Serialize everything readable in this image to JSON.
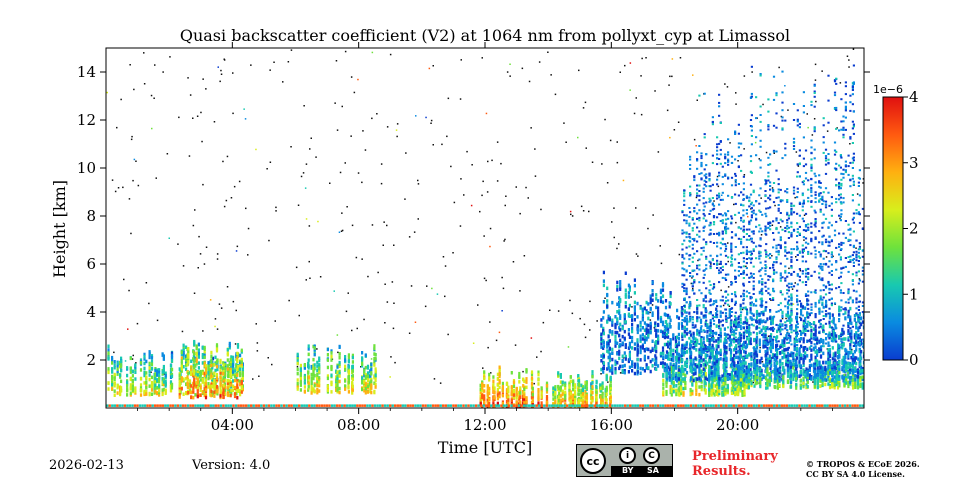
{
  "chart_data": {
    "type": "heatmap",
    "title": "Quasi backscatter coefficient (V2) at 1064 nm from pollyxt_cyp at Limassol",
    "xlabel": "Time [UTC]",
    "ylabel": "Height [km]",
    "xlim_hours": [
      0,
      24
    ],
    "ylim_km": [
      0,
      15
    ],
    "x_ticks": [
      {
        "value": 4,
        "label": "04:00"
      },
      {
        "value": 8,
        "label": "08:00"
      },
      {
        "value": 12,
        "label": "12:00"
      },
      {
        "value": 16,
        "label": "16:00"
      },
      {
        "value": 20,
        "label": "20:00"
      }
    ],
    "y_ticks": [
      {
        "value": 2,
        "label": "2"
      },
      {
        "value": 4,
        "label": "4"
      },
      {
        "value": 6,
        "label": "6"
      },
      {
        "value": 8,
        "label": "8"
      },
      {
        "value": 10,
        "label": "10"
      },
      {
        "value": 12,
        "label": "12"
      },
      {
        "value": 14,
        "label": "14"
      }
    ],
    "colorbar": {
      "range": [
        0,
        4
      ],
      "multiplier_label": "1e−6",
      "ticks": [
        {
          "value": 0,
          "label": "0"
        },
        {
          "value": 1,
          "label": "1"
        },
        {
          "value": 2,
          "label": "2"
        },
        {
          "value": 3,
          "label": "3"
        },
        {
          "value": 4,
          "label": "4"
        }
      ],
      "colors": [
        "#0a3ccf",
        "#0a8be0",
        "#18c9b0",
        "#6ee23c",
        "#d8ee1c",
        "#ffb010",
        "#ff5a10",
        "#e01010"
      ]
    },
    "regions": [
      {
        "kind": "aerosol",
        "t0": 0.0,
        "t1": 4.3,
        "h0": 0.6,
        "h1": 2.8,
        "level": 2.4
      },
      {
        "kind": "aerosol",
        "t0": 2.3,
        "t1": 4.3,
        "h0": 0.5,
        "h1": 2.9,
        "level": 3.3
      },
      {
        "kind": "aerosol",
        "t0": 6.0,
        "t1": 8.6,
        "h0": 0.7,
        "h1": 2.7,
        "level": 2.6
      },
      {
        "kind": "aerosol",
        "t0": 11.8,
        "t1": 14.1,
        "h0": 0.1,
        "h1": 1.8,
        "level": 3.6
      },
      {
        "kind": "aerosol",
        "t0": 14.1,
        "t1": 16.0,
        "h0": 0.1,
        "h1": 1.8,
        "level": 3.0
      },
      {
        "kind": "cloud",
        "t0": 15.6,
        "t1": 17.8,
        "h0": 1.5,
        "h1": 6.0,
        "level": 0.5
      },
      {
        "kind": "aerosol",
        "t0": 17.6,
        "t1": 20.2,
        "h0": 0.6,
        "h1": 3.0,
        "level": 2.2
      },
      {
        "kind": "cloud",
        "t0": 17.7,
        "t1": 24.0,
        "h0": 1.2,
        "h1": 5.0,
        "level": 0.6
      },
      {
        "kind": "cirrus",
        "t0": 18.2,
        "t1": 24.0,
        "h0": 2.5,
        "h1": 14.8,
        "level": 0.4
      },
      {
        "kind": "aerosol",
        "t0": 19.0,
        "t1": 20.0,
        "h0": 0.6,
        "h1": 2.4,
        "level": 2.0
      },
      {
        "kind": "aerosol",
        "t0": 20.0,
        "t1": 24.0,
        "h0": 0.9,
        "h1": 2.6,
        "level": 1.8
      }
    ]
  },
  "footer": {
    "date": "2026-02-13",
    "version": "Version: 4.0",
    "preliminary_line1": "Preliminary",
    "preliminary_line2": "Results.",
    "license_line1": "© TROPOS & ECoE 2026.",
    "license_line2": "CC BY SA 4.0 License.",
    "cc_badge": {
      "main": "cc",
      "by": "BY",
      "sa": "SA"
    }
  }
}
